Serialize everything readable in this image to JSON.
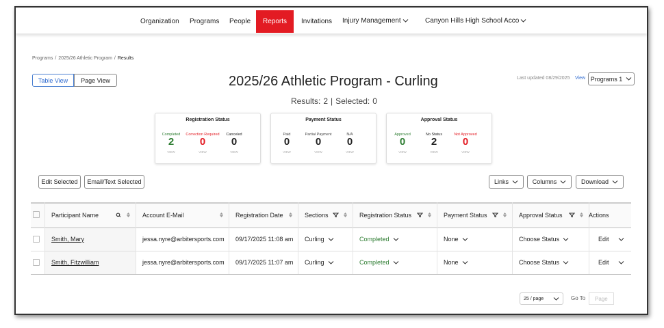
{
  "nav": {
    "items": [
      "Organization",
      "Programs",
      "People",
      "Reports",
      "Invitations",
      "Injury Management",
      "Canyon Hills High School Acco"
    ]
  },
  "breadcrumb": {
    "items": [
      "Programs",
      "2025/26 Athletic Program",
      "Results"
    ],
    "separator": "/"
  },
  "view_toggle": [
    "Table View",
    "Page View"
  ],
  "header": {
    "title": "2025/26 Athletic Program - Curling",
    "last_updated": "Last updated 08/29/2025",
    "last_updated_link": "View",
    "programs_button": "Programs 1"
  },
  "summary": {
    "results_label": "Results:",
    "results": 2,
    "separator": "|",
    "selected_label": "Selected:",
    "selected": 0
  },
  "stat_cards": [
    {
      "title": "Registration Status",
      "items": [
        {
          "label": "Completed",
          "value": 2,
          "link": "VIEW",
          "color": "#2e7d32"
        },
        {
          "label": "Correction Required",
          "value": 0,
          "link": "VIEW",
          "color": "#e31b23"
        },
        {
          "label": "Canceled",
          "value": 0,
          "link": "VIEW",
          "color": "#222222"
        }
      ]
    },
    {
      "title": "Payment Status",
      "items": [
        {
          "label": "Paid",
          "value": 0,
          "link": "VIEW",
          "color": "#222222"
        },
        {
          "label": "Partial Payment",
          "value": 0,
          "link": "VIEW",
          "color": "#222222"
        },
        {
          "label": "N/A",
          "value": 0,
          "link": "VIEW",
          "color": "#222222"
        }
      ]
    },
    {
      "title": "Approval Status",
      "items": [
        {
          "label": "Approved",
          "value": 0,
          "link": "VIEW",
          "color": "#2e7d32"
        },
        {
          "label": "No Status",
          "value": 2,
          "link": "VIEW",
          "color": "#222222"
        },
        {
          "label": "Not Approved",
          "value": 0,
          "link": "VIEW",
          "color": "#e31b23"
        }
      ]
    }
  ],
  "actions_left": [
    "Edit Selected",
    "Email/Text Selected"
  ],
  "actions_right": [
    "Links",
    "Columns",
    "Download"
  ],
  "table": {
    "columns": [
      "Participant Name",
      "Account E-Mail",
      "Registration Date",
      "Sections",
      "Registration Status",
      "Payment Status",
      "Approval Status",
      "Actions"
    ],
    "rows": [
      [
        "Smith, Mary",
        "jessa.nyre@arbitersports.com",
        "09/17/2025 11:08 am",
        "Curling",
        "Completed",
        "None",
        "Choose Status",
        "Edit"
      ],
      [
        "Smith, Fitzwilliam",
        "jessa.nyre@arbitersports.com",
        "09/17/2025 11:07 am",
        "Curling",
        "Completed",
        "None",
        "Choose Status",
        "Edit"
      ]
    ]
  },
  "pagination": {
    "page_size": "25 / page",
    "goto_label": "Go To",
    "goto_placeholder": "Page"
  }
}
